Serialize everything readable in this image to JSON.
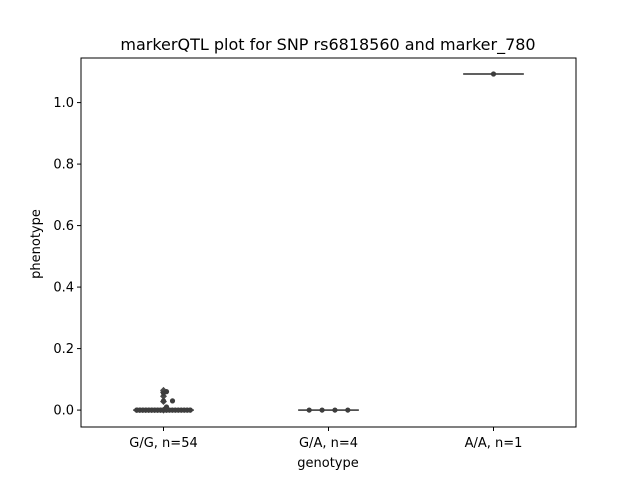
{
  "chart_data": {
    "type": "scatter",
    "title": "markerQTL plot for SNP rs6818560 and marker_780",
    "xlabel": "genotype",
    "ylabel": "phenotype",
    "categories": [
      "G/G, n=54",
      "G/A, n=4",
      "A/A, n=1"
    ],
    "ylim": [
      -0.055,
      1.145
    ],
    "yticks": [
      0.0,
      0.2,
      0.4,
      0.6,
      0.8,
      1.0
    ],
    "ytick_labels": [
      "0.0",
      "0.2",
      "0.4",
      "0.6",
      "0.8",
      "1.0"
    ],
    "grid": false,
    "box_color": "#4a4a4a",
    "point_color": "#3d3d3d",
    "groups": [
      {
        "category": "G/G, n=54",
        "n": 54,
        "box": {
          "q1": 0.0,
          "median": 0.0,
          "q3": 0.0,
          "whisker_low": 0.0,
          "whisker_high": 0.0
        },
        "outliers": [
          0.0,
          0.028,
          0.045,
          0.058,
          0.064
        ],
        "points": [
          0.0,
          0.0,
          0.0,
          0.0,
          0.0,
          0.0,
          0.0,
          0.0,
          0.0,
          0.0,
          0.0,
          0.0,
          0.0,
          0.0,
          0.0,
          0.0,
          0.0,
          0.0,
          0.0,
          0.0,
          0.0,
          0.0,
          0.0,
          0.0,
          0.0,
          0.0,
          0.0,
          0.0,
          0.0,
          0.0,
          0.0,
          0.0,
          0.0,
          0.0,
          0.0,
          0.0,
          0.0,
          0.0,
          0.0,
          0.0,
          0.0,
          0.0,
          0.0,
          0.0,
          0.0,
          0.0,
          0.0,
          0.0,
          0.0,
          0.03,
          0.01,
          0.03,
          0.055,
          0.06
        ]
      },
      {
        "category": "G/A, n=4",
        "n": 4,
        "box": {
          "q1": 0.0,
          "median": 0.0,
          "q3": 0.0,
          "whisker_low": 0.0,
          "whisker_high": 0.0
        },
        "outliers": [],
        "points": [
          0.0,
          0.0,
          0.0,
          0.0
        ]
      },
      {
        "category": "A/A, n=1",
        "n": 1,
        "box": {
          "q1": 1.093,
          "median": 1.093,
          "q3": 1.093,
          "whisker_low": 1.093,
          "whisker_high": 1.093
        },
        "outliers": [],
        "points": [
          1.093
        ]
      }
    ]
  }
}
